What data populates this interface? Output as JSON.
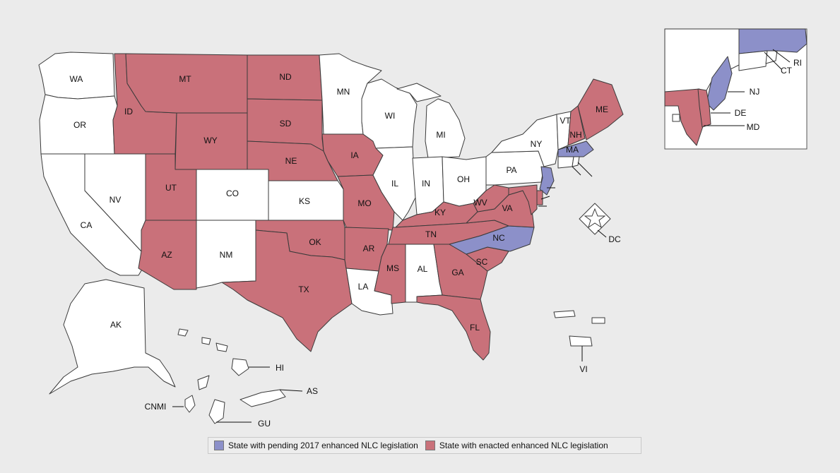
{
  "colors": {
    "enacted": "#c9717a",
    "pending": "#8c90c9",
    "none": "#ffffff",
    "background": "#ebebeb"
  },
  "legend": {
    "pending_label": "State with pending 2017 enhanced NLC legislation",
    "enacted_label": "State with enacted enhanced NLC legislation"
  },
  "states": [
    {
      "code": "WA",
      "label": "WA",
      "status": "none"
    },
    {
      "code": "OR",
      "label": "OR",
      "status": "none"
    },
    {
      "code": "CA",
      "label": "CA",
      "status": "none"
    },
    {
      "code": "NV",
      "label": "NV",
      "status": "none"
    },
    {
      "code": "ID",
      "label": "ID",
      "status": "enacted"
    },
    {
      "code": "MT",
      "label": "MT",
      "status": "enacted"
    },
    {
      "code": "WY",
      "label": "WY",
      "status": "enacted"
    },
    {
      "code": "UT",
      "label": "UT",
      "status": "enacted"
    },
    {
      "code": "AZ",
      "label": "AZ",
      "status": "enacted"
    },
    {
      "code": "CO",
      "label": "CO",
      "status": "none"
    },
    {
      "code": "NM",
      "label": "NM",
      "status": "none"
    },
    {
      "code": "ND",
      "label": "ND",
      "status": "enacted"
    },
    {
      "code": "SD",
      "label": "SD",
      "status": "enacted"
    },
    {
      "code": "NE",
      "label": "NE",
      "status": "enacted"
    },
    {
      "code": "KS",
      "label": "KS",
      "status": "none"
    },
    {
      "code": "OK",
      "label": "OK",
      "status": "enacted"
    },
    {
      "code": "TX",
      "label": "TX",
      "status": "enacted"
    },
    {
      "code": "MN",
      "label": "MN",
      "status": "none"
    },
    {
      "code": "IA",
      "label": "IA",
      "status": "enacted"
    },
    {
      "code": "MO",
      "label": "MO",
      "status": "enacted"
    },
    {
      "code": "AR",
      "label": "AR",
      "status": "enacted"
    },
    {
      "code": "LA",
      "label": "LA",
      "status": "none"
    },
    {
      "code": "WI",
      "label": "WI",
      "status": "none"
    },
    {
      "code": "IL",
      "label": "IL",
      "status": "none"
    },
    {
      "code": "MI",
      "label": "MI",
      "status": "none"
    },
    {
      "code": "IN",
      "label": "IN",
      "status": "none"
    },
    {
      "code": "OH",
      "label": "OH",
      "status": "none"
    },
    {
      "code": "KY",
      "label": "KY",
      "status": "enacted"
    },
    {
      "code": "TN",
      "label": "TN",
      "status": "enacted"
    },
    {
      "code": "MS",
      "label": "MS",
      "status": "enacted"
    },
    {
      "code": "AL",
      "label": "AL",
      "status": "none"
    },
    {
      "code": "GA",
      "label": "GA",
      "status": "enacted"
    },
    {
      "code": "FL",
      "label": "FL",
      "status": "enacted"
    },
    {
      "code": "SC",
      "label": "SC",
      "status": "enacted"
    },
    {
      "code": "NC",
      "label": "NC",
      "status": "pending"
    },
    {
      "code": "VA",
      "label": "VA",
      "status": "enacted"
    },
    {
      "code": "WV",
      "label": "WV",
      "status": "enacted"
    },
    {
      "code": "PA",
      "label": "PA",
      "status": "none"
    },
    {
      "code": "NY",
      "label": "NY",
      "status": "none"
    },
    {
      "code": "VT",
      "label": "VT",
      "status": "none"
    },
    {
      "code": "NH",
      "label": "NH",
      "status": "enacted"
    },
    {
      "code": "ME",
      "label": "ME",
      "status": "enacted"
    },
    {
      "code": "MA",
      "label": "MA",
      "status": "pending"
    },
    {
      "code": "NJ",
      "label": "NJ",
      "status": "pending"
    },
    {
      "code": "DE",
      "label": "DE",
      "status": "enacted"
    },
    {
      "code": "MD",
      "label": "MD",
      "status": "enacted"
    },
    {
      "code": "CT",
      "label": "CT",
      "status": "none"
    },
    {
      "code": "RI",
      "label": "RI",
      "status": "none"
    },
    {
      "code": "DC",
      "label": "DC",
      "status": "none"
    },
    {
      "code": "AK",
      "label": "AK",
      "status": "none"
    },
    {
      "code": "HI",
      "label": "HI",
      "status": "none"
    },
    {
      "code": "AS",
      "label": "AS",
      "status": "none"
    },
    {
      "code": "CNMI",
      "label": "CNMI",
      "status": "none"
    },
    {
      "code": "GU",
      "label": "GU",
      "status": "none"
    },
    {
      "code": "VI",
      "label": "VI",
      "status": "none"
    }
  ]
}
